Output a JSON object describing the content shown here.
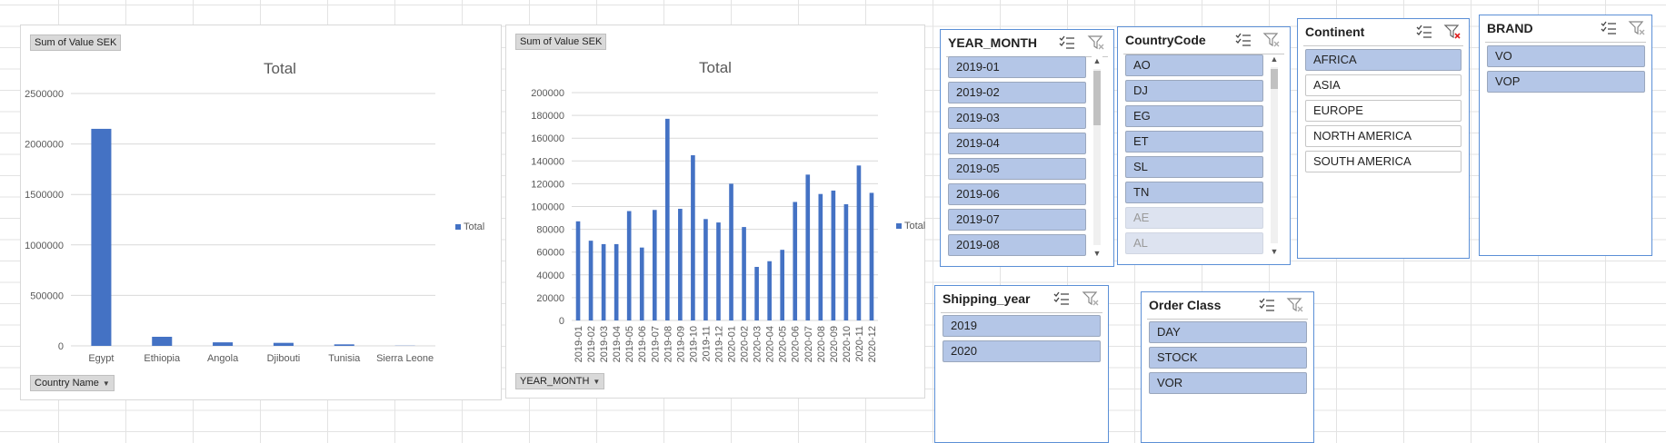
{
  "chart_data": [
    {
      "type": "bar",
      "title": "Total",
      "categories": [
        "Egypt",
        "Ethiopia",
        "Angola",
        "Djibouti",
        "Tunisia",
        "Sierra Leone"
      ],
      "series": [
        {
          "name": "Total",
          "values": [
            2150000,
            90000,
            35000,
            30000,
            15000,
            2000
          ]
        }
      ],
      "ylim": [
        0,
        2500000
      ],
      "yticks": [
        "0",
        "500000",
        "1000000",
        "1500000",
        "2000000",
        "2500000"
      ],
      "grid": true,
      "legend": "right",
      "color": "#4472c4"
    },
    {
      "type": "bar",
      "title": "Total",
      "categories": [
        "2019-01",
        "2019-02",
        "2019-03",
        "2019-04",
        "2019-05",
        "2019-06",
        "2019-07",
        "2019-08",
        "2019-09",
        "2019-10",
        "2019-11",
        "2019-12",
        "2020-01",
        "2020-02",
        "2020-03",
        "2020-04",
        "2020-05",
        "2020-06",
        "2020-07",
        "2020-08",
        "2020-09",
        "2020-10",
        "2020-11",
        "2020-12"
      ],
      "series": [
        {
          "name": "Total",
          "values": [
            87000,
            70000,
            67000,
            67000,
            96000,
            64000,
            97000,
            177000,
            98000,
            145000,
            89000,
            86000,
            120000,
            82000,
            47000,
            52000,
            62000,
            104000,
            128000,
            111000,
            114000,
            102000,
            136000,
            112000
          ]
        }
      ],
      "ylim": [
        0,
        200000
      ],
      "yticks": [
        "0",
        "20000",
        "40000",
        "60000",
        "80000",
        "100000",
        "120000",
        "140000",
        "160000",
        "180000",
        "200000"
      ],
      "grid": true,
      "legend": "right",
      "color": "#4472c4"
    }
  ],
  "pivot1": {
    "value_field": "Sum of Value SEK",
    "axis_field": "Country Name"
  },
  "pivot2": {
    "value_field": "Sum of Value SEK",
    "axis_field": "YEAR_MONTH"
  },
  "slicers": {
    "year_month": {
      "title": "YEAR_MONTH",
      "items": [
        "2019-01",
        "2019-02",
        "2019-03",
        "2019-04",
        "2019-05",
        "2019-06",
        "2019-07",
        "2019-08"
      ]
    },
    "country_code": {
      "title": "CountryCode",
      "items": [
        "AO",
        "DJ",
        "EG",
        "ET",
        "SL",
        "TN"
      ],
      "unavailable": [
        "AE",
        "AL"
      ]
    },
    "continent": {
      "title": "Continent",
      "selected": [
        "AFRICA"
      ],
      "unselected": [
        "ASIA",
        "EUROPE",
        "NORTH AMERICA",
        "SOUTH AMERICA"
      ]
    },
    "brand": {
      "title": "BRAND",
      "items": [
        "VO",
        "VOP"
      ]
    },
    "shipping_year": {
      "title": "Shipping_year",
      "items": [
        "2019",
        "2020"
      ]
    },
    "order_class": {
      "title": "Order Class",
      "items": [
        "DAY",
        "STOCK",
        "VOR"
      ]
    }
  },
  "colors": {
    "bar": "#4472c4",
    "slicer_selected": "#b4c6e7",
    "slicer_border": "#5b8fd6",
    "filter_clear_active": "#e02020"
  },
  "icons": {
    "multi_select": "multi-select-icon",
    "clear_filter": "clear-filter-icon"
  }
}
